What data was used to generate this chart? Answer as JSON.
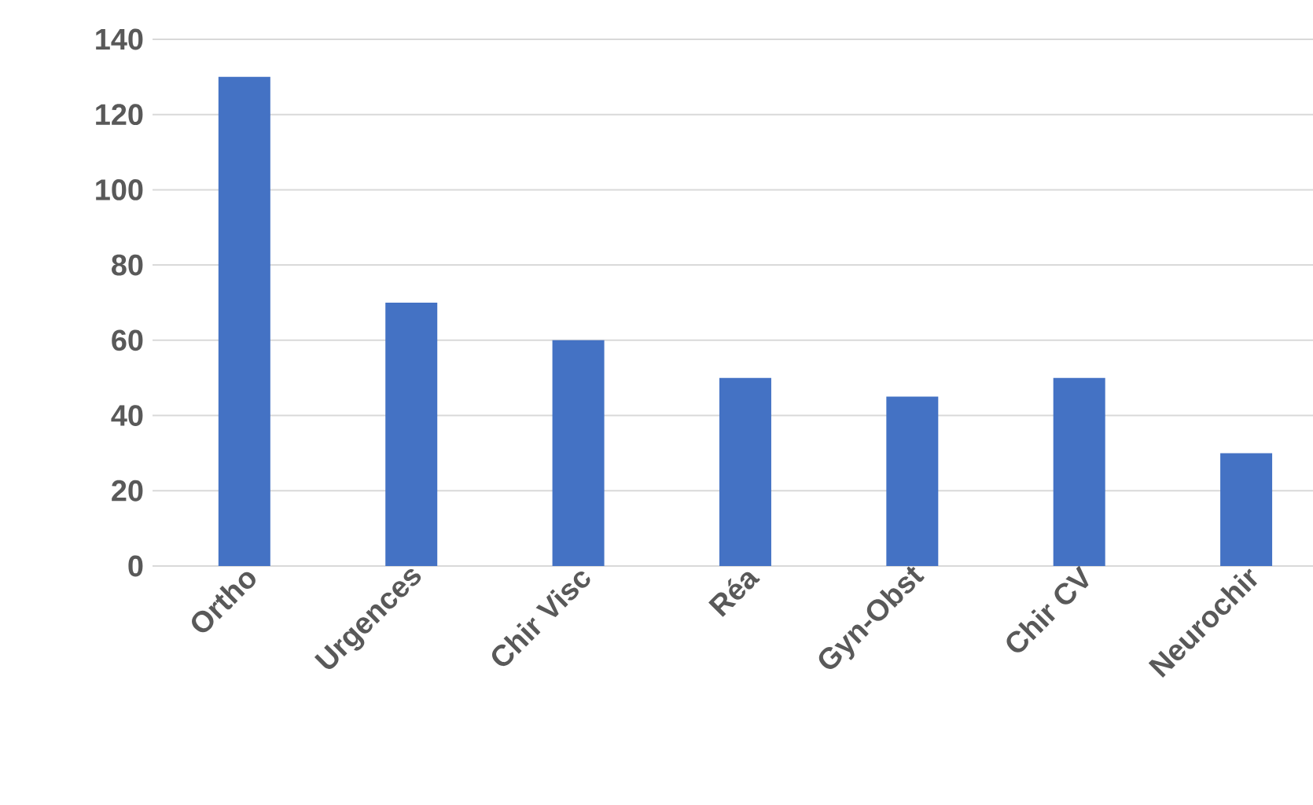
{
  "chart_data": {
    "type": "bar",
    "categories": [
      "Ortho",
      "Urgences",
      "Chir Visc",
      "Réa",
      "Gyn-Obst",
      "Chir CV",
      "Neurochir"
    ],
    "values": [
      130,
      70,
      60,
      50,
      45,
      50,
      30
    ],
    "color": "#4472c4",
    "ylim": [
      0,
      140
    ],
    "yticks": [
      0,
      20,
      40,
      60,
      80,
      100,
      120,
      140
    ],
    "grid": "y"
  }
}
